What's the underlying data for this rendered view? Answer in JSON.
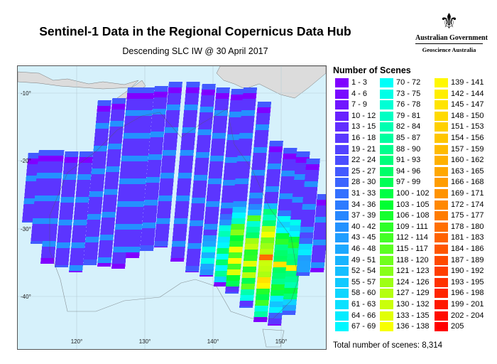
{
  "header": {
    "title": "Sentinel-1 Data in the Regional Copernicus Data Hub",
    "subtitle": "Descending SLC IW @ 30 April 2017"
  },
  "logo": {
    "government": "Australian Government",
    "agency": "Geoscience Australia"
  },
  "map": {
    "lat_labels": [
      "-10°",
      "-20°",
      "-30°",
      "-40°"
    ],
    "lon_labels": [
      "120°",
      "130°",
      "140°",
      "150°"
    ],
    "ocean_color": "#d6f1fb",
    "land_color": "#dcdcdc"
  },
  "legend": {
    "title": "Number of Scenes",
    "color_stops": [
      "#8000ff",
      "#2a7fff",
      "#00ffff",
      "#00ff33",
      "#ffff00",
      "#ff8c00",
      "#ff0000"
    ],
    "items": [
      "1 - 3",
      "4 - 6",
      "7 - 9",
      "10 - 12",
      "13 - 15",
      "16 - 18",
      "19 - 21",
      "22 - 24",
      "25 - 27",
      "28 - 30",
      "31 - 33",
      "34 - 36",
      "37 - 39",
      "40 - 42",
      "43 - 45",
      "46 - 48",
      "49 - 51",
      "52 - 54",
      "55 - 57",
      "58 - 60",
      "61 - 63",
      "64 - 66",
      "67 - 69",
      "70 - 72",
      "73 - 75",
      "76 - 78",
      "79 - 81",
      "82 - 84",
      "85 - 87",
      "88 - 90",
      "91 - 93",
      "94 - 96",
      "97 - 99",
      "100 - 102",
      "103 - 105",
      "106 - 108",
      "109 - 111",
      "112 - 114",
      "115 - 117",
      "118 - 120",
      "121 - 123",
      "124 - 126",
      "127 - 129",
      "130 - 132",
      "133 - 135",
      "136 - 138",
      "139 - 141",
      "142 - 144",
      "145 - 147",
      "148 - 150",
      "151 - 153",
      "154 - 156",
      "157 - 159",
      "160 - 162",
      "163 - 165",
      "166 - 168",
      "169 - 171",
      "172 - 174",
      "175 - 177",
      "178 - 180",
      "181 - 183",
      "184 - 186",
      "187 - 189",
      "190 - 192",
      "193 - 195",
      "196 - 198",
      "199 - 201",
      "202 - 204",
      "205"
    ]
  },
  "footer": {
    "total": "Total number of scenes: 8,314"
  }
}
